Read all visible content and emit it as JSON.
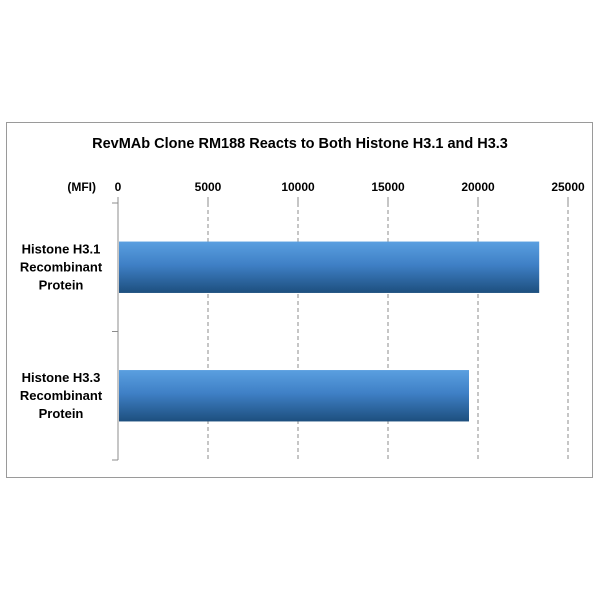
{
  "chart_data": {
    "type": "bar",
    "orientation": "horizontal",
    "title": "RevMAb Clone RM188 Reacts to Both Histone H3.1 and H3.3",
    "axis_unit_label": "(MFI)",
    "categories": [
      [
        "Histone H3.1",
        "Recombinant",
        "Protein"
      ],
      [
        "Histone H3.3",
        "Recombinant",
        "Protein"
      ]
    ],
    "values": [
      23400,
      19500
    ],
    "xlim": [
      0,
      25000
    ],
    "ticks": [
      "0",
      "5000",
      "10000",
      "15000",
      "20000",
      "25000"
    ],
    "tick_values": [
      0,
      5000,
      10000,
      15000,
      20000,
      25000
    ],
    "axis_position": "top",
    "grid": "vertical dashed",
    "legend": "none",
    "bar_color_top": "#5a9fe0",
    "bar_color_bottom": "#1d4f7e"
  }
}
